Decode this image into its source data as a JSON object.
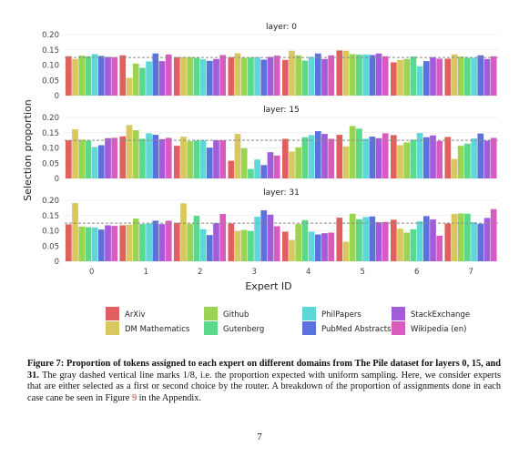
{
  "figure": {
    "y_axis_label": "Selection proportion",
    "x_axis_label": "Expert ID",
    "legend": [
      {
        "name": "ArXiv",
        "color": "#e0605f"
      },
      {
        "name": "DM Mathematics",
        "color": "#d9c760"
      },
      {
        "name": "Github",
        "color": "#9ad452"
      },
      {
        "name": "Gutenberg",
        "color": "#5bd98b"
      },
      {
        "name": "PhilPapers",
        "color": "#5ed7d8"
      },
      {
        "name": "PubMed Abstracts",
        "color": "#5b72dc"
      },
      {
        "name": "StackExchange",
        "color": "#a45bd9"
      },
      {
        "name": "Wikipedia (en)",
        "color": "#d95bbf"
      }
    ]
  },
  "chart_data": [
    {
      "type": "bar",
      "title": "layer: 0",
      "categories": [
        "0",
        "1",
        "2",
        "3",
        "4",
        "5",
        "6",
        "7"
      ],
      "ylim": [
        0,
        0.2
      ],
      "yticks": [
        "0",
        "0.05",
        "0.10",
        "0.15",
        "0.20"
      ],
      "reference_line": 0.125,
      "series": [
        {
          "name": "ArXiv",
          "values": [
            0.129,
            0.132,
            0.126,
            0.126,
            0.117,
            0.148,
            0.109,
            0.121
          ]
        },
        {
          "name": "DM Mathematics",
          "values": [
            0.12,
            0.058,
            0.126,
            0.139,
            0.147,
            0.147,
            0.117,
            0.135
          ]
        },
        {
          "name": "Github",
          "values": [
            0.131,
            0.105,
            0.126,
            0.124,
            0.132,
            0.136,
            0.12,
            0.128
          ]
        },
        {
          "name": "Gutenberg",
          "values": [
            0.129,
            0.091,
            0.124,
            0.125,
            0.115,
            0.134,
            0.128,
            0.124
          ]
        },
        {
          "name": "PhilPapers",
          "values": [
            0.136,
            0.112,
            0.119,
            0.126,
            0.127,
            0.135,
            0.096,
            0.124
          ]
        },
        {
          "name": "PubMed Abstracts",
          "values": [
            0.13,
            0.138,
            0.114,
            0.118,
            0.138,
            0.133,
            0.113,
            0.132
          ]
        },
        {
          "name": "StackExchange",
          "values": [
            0.127,
            0.113,
            0.12,
            0.127,
            0.12,
            0.138,
            0.126,
            0.12
          ]
        },
        {
          "name": "Wikipedia (en)",
          "values": [
            0.126,
            0.135,
            0.133,
            0.131,
            0.132,
            0.129,
            0.121,
            0.129
          ]
        }
      ]
    },
    {
      "type": "bar",
      "title": "layer: 15",
      "categories": [
        "0",
        "1",
        "2",
        "3",
        "4",
        "5",
        "6",
        "7"
      ],
      "ylim": [
        0,
        0.2
      ],
      "yticks": [
        "0",
        "0.05",
        "0.10",
        "0.15",
        "0.20"
      ],
      "reference_line": 0.125,
      "series": [
        {
          "name": "ArXiv",
          "values": [
            0.125,
            0.138,
            0.107,
            0.058,
            0.13,
            0.143,
            0.142,
            0.136
          ]
        },
        {
          "name": "DM Mathematics",
          "values": [
            0.161,
            0.175,
            0.137,
            0.146,
            0.088,
            0.105,
            0.109,
            0.064
          ]
        },
        {
          "name": "Github",
          "values": [
            0.127,
            0.158,
            0.122,
            0.099,
            0.102,
            0.172,
            0.118,
            0.107
          ]
        },
        {
          "name": "Gutenberg",
          "values": [
            0.124,
            0.13,
            0.124,
            0.031,
            0.135,
            0.163,
            0.127,
            0.114
          ]
        },
        {
          "name": "PhilPapers",
          "values": [
            0.103,
            0.148,
            0.125,
            0.062,
            0.142,
            0.13,
            0.149,
            0.131
          ]
        },
        {
          "name": "PubMed Abstracts",
          "values": [
            0.109,
            0.143,
            0.101,
            0.044,
            0.155,
            0.137,
            0.135,
            0.147
          ]
        },
        {
          "name": "StackExchange",
          "values": [
            0.132,
            0.129,
            0.125,
            0.086,
            0.146,
            0.132,
            0.141,
            0.124
          ]
        },
        {
          "name": "Wikipedia (en)",
          "values": [
            0.133,
            0.133,
            0.125,
            0.075,
            0.13,
            0.148,
            0.123,
            0.133
          ]
        }
      ]
    },
    {
      "type": "bar",
      "title": "layer: 31",
      "categories": [
        "0",
        "1",
        "2",
        "3",
        "4",
        "5",
        "6",
        "7"
      ],
      "ylim": [
        0,
        0.2
      ],
      "yticks": [
        "0",
        "0.05",
        "0.10",
        "0.15",
        "0.20"
      ],
      "reference_line": 0.125,
      "series": [
        {
          "name": "ArXiv",
          "values": [
            0.121,
            0.118,
            0.126,
            0.124,
            0.097,
            0.143,
            0.136,
            0.124
          ]
        },
        {
          "name": "DM Mathematics",
          "values": [
            0.191,
            0.12,
            0.19,
            0.099,
            0.07,
            0.064,
            0.107,
            0.155
          ]
        },
        {
          "name": "Github",
          "values": [
            0.114,
            0.14,
            0.123,
            0.103,
            0.122,
            0.156,
            0.094,
            0.157
          ]
        },
        {
          "name": "Gutenberg",
          "values": [
            0.112,
            0.122,
            0.149,
            0.099,
            0.135,
            0.138,
            0.105,
            0.156
          ]
        },
        {
          "name": "PhilPapers",
          "values": [
            0.111,
            0.124,
            0.105,
            0.146,
            0.097,
            0.145,
            0.131,
            0.128
          ]
        },
        {
          "name": "PubMed Abstracts",
          "values": [
            0.104,
            0.133,
            0.086,
            0.167,
            0.088,
            0.147,
            0.148,
            0.123
          ]
        },
        {
          "name": "StackExchange",
          "values": [
            0.118,
            0.122,
            0.125,
            0.153,
            0.092,
            0.128,
            0.137,
            0.142
          ]
        },
        {
          "name": "Wikipedia (en)",
          "values": [
            0.116,
            0.133,
            0.155,
            0.115,
            0.094,
            0.129,
            0.084,
            0.171
          ]
        }
      ]
    }
  ],
  "caption": {
    "figure_label": "Figure 7:",
    "bold_text": "Proportion of tokens assigned to each expert on different domains from The Pile dataset for layers 0, 15, and 31.",
    "text_before_fraction": "The gray dashed vertical line marks ",
    "fraction": "1/8",
    "text_after_fraction": ", i.e. the proportion expected with uniform sampling. Here, we consider experts that are either selected as a first or second choice by the router. A breakdown of the proportion of assignments done in each case cane be seen in Figure ",
    "figure_ref": "9",
    "text_end": " in the Appendix."
  },
  "page_number": "7"
}
